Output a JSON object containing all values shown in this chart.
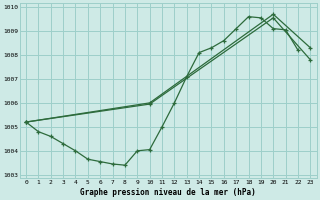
{
  "title": "Graphe pression niveau de la mer (hPa)",
  "bg_color": "#ceeae6",
  "grid_color": "#9dcfca",
  "line_color": "#2d6b3c",
  "x_labels": [
    "0",
    "1",
    "2",
    "3",
    "4",
    "5",
    "6",
    "7",
    "8",
    "9",
    "10",
    "11",
    "12",
    "13",
    "14",
    "15",
    "16",
    "17",
    "18",
    "19",
    "20",
    "21",
    "22",
    "23"
  ],
  "x_values": [
    0,
    1,
    2,
    3,
    4,
    5,
    6,
    7,
    8,
    9,
    10,
    11,
    12,
    13,
    14,
    15,
    16,
    17,
    18,
    19,
    20,
    21,
    22,
    23
  ],
  "ylim": [
    1003,
    1010
  ],
  "yticks": [
    1003,
    1004,
    1005,
    1006,
    1007,
    1008,
    1009,
    1010
  ],
  "series1_x": [
    0,
    1,
    2,
    3,
    4,
    5,
    6,
    7,
    8,
    9,
    10,
    11,
    12,
    13,
    14,
    15,
    16,
    17,
    18,
    19,
    20,
    21,
    22
  ],
  "series1_y": [
    1005.2,
    1004.8,
    1004.6,
    1004.3,
    1004.0,
    1003.65,
    1003.55,
    1003.45,
    1003.4,
    1004.0,
    1004.05,
    1005.0,
    1006.0,
    1007.1,
    1008.1,
    1008.3,
    1008.6,
    1009.1,
    1009.6,
    1009.55,
    1009.1,
    1009.05,
    1008.2
  ],
  "series2_x": [
    0,
    10,
    20,
    23
  ],
  "series2_y": [
    1005.2,
    1005.95,
    1009.55,
    1007.8
  ],
  "series3_x": [
    0,
    10,
    20,
    23
  ],
  "series3_y": [
    1005.2,
    1006.0,
    1009.7,
    1008.3
  ],
  "figsize": [
    3.2,
    2.0
  ],
  "dpi": 100
}
